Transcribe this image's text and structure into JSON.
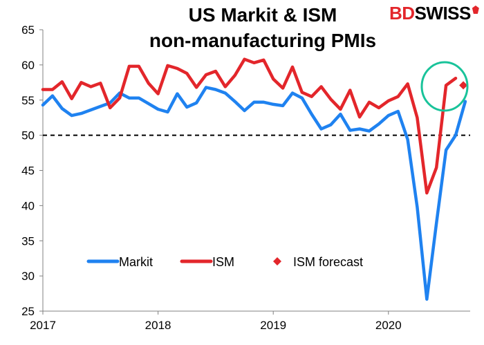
{
  "header": {
    "title_line1": "US Markit & ISM",
    "title_line2": "non-manufacturing PMIs",
    "brand_part1": "BD",
    "brand_part2": "SWISS"
  },
  "colors": {
    "markit": "#1f82f0",
    "ism": "#e3262b",
    "forecast": "#e3262b",
    "highlight_circle": "#19c39a",
    "reference_line": "#000000"
  },
  "chart_data": {
    "type": "line",
    "title": "US Markit & ISM non-manufacturing PMIs",
    "xlim": [
      2017,
      2020.7
    ],
    "ylim": [
      25,
      65
    ],
    "yticks": [
      25,
      30,
      35,
      40,
      45,
      50,
      55,
      60,
      65
    ],
    "xticks": [
      {
        "value": 2017,
        "label": "2017"
      },
      {
        "value": 2018,
        "label": "2018"
      },
      {
        "value": 2019,
        "label": "2019"
      },
      {
        "value": 2020,
        "label": "2020"
      }
    ],
    "reference_line": {
      "y": 50,
      "style": "dashed"
    },
    "grid": false,
    "legend_position": "bottom-center",
    "series": [
      {
        "name": "Markit",
        "key": "markit",
        "values": [
          54.3,
          55.6,
          53.8,
          52.8,
          53.1,
          53.6,
          54.1,
          54.6,
          56.0,
          55.3,
          55.3,
          54.5,
          53.7,
          53.3,
          55.9,
          54.0,
          54.6,
          56.8,
          56.5,
          56.0,
          54.8,
          53.5,
          54.7,
          54.7,
          54.4,
          54.2,
          56.0,
          55.3,
          53.0,
          50.9,
          51.5,
          53.0,
          50.7,
          50.9,
          50.6,
          51.6,
          52.8,
          53.4,
          49.4,
          39.8,
          26.7,
          37.5,
          47.9,
          50.0,
          54.8
        ],
        "start_month": 0
      },
      {
        "name": "ISM",
        "key": "ism",
        "values": [
          56.5,
          56.5,
          57.6,
          55.2,
          57.5,
          56.9,
          57.4,
          53.9,
          55.3,
          59.8,
          59.8,
          57.4,
          55.9,
          59.9,
          59.5,
          58.8,
          56.8,
          58.6,
          59.1,
          56.9,
          58.5,
          60.8,
          60.3,
          60.7,
          58.0,
          56.7,
          59.7,
          56.1,
          55.5,
          56.9,
          55.1,
          53.7,
          56.4,
          52.6,
          54.7,
          53.9,
          54.9,
          55.5,
          57.3,
          52.5,
          41.8,
          45.4,
          57.1,
          58.1
        ],
        "start_month": 0
      },
      {
        "name": "ISM forecast",
        "key": "forecast",
        "values": [
          57.1
        ],
        "start_month": 43.8,
        "marker": "diamond"
      }
    ]
  }
}
